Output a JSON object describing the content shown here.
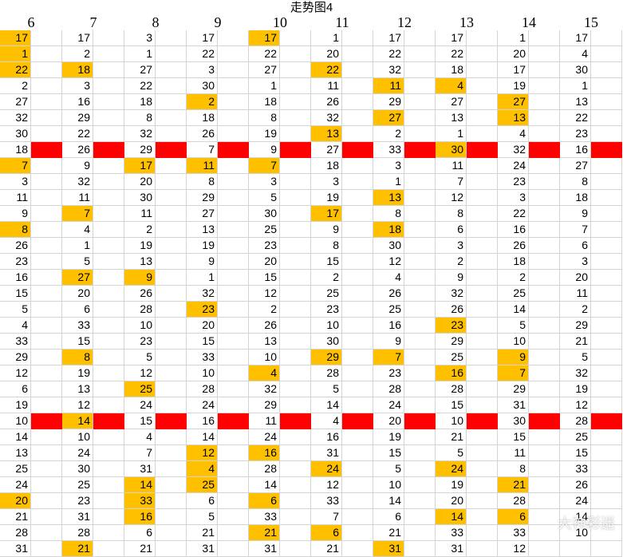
{
  "title": "走势图4",
  "headers": [
    "6",
    "7",
    "8",
    "9",
    "10",
    "11",
    "12",
    "13",
    "14",
    "15"
  ],
  "rows": [
    [
      17,
      17,
      3,
      17,
      17,
      1,
      17,
      17,
      1,
      17
    ],
    [
      1,
      2,
      1,
      22,
      22,
      20,
      22,
      22,
      20,
      4
    ],
    [
      22,
      18,
      27,
      3,
      27,
      22,
      32,
      18,
      17,
      30
    ],
    [
      2,
      3,
      22,
      30,
      1,
      11,
      11,
      4,
      19,
      1
    ],
    [
      27,
      16,
      18,
      2,
      18,
      26,
      29,
      27,
      27,
      13
    ],
    [
      32,
      29,
      8,
      18,
      8,
      32,
      27,
      13,
      13,
      22
    ],
    [
      30,
      22,
      32,
      26,
      19,
      13,
      2,
      1,
      4,
      23
    ],
    [
      18,
      26,
      29,
      7,
      9,
      27,
      33,
      30,
      32,
      16
    ],
    [
      7,
      9,
      17,
      11,
      7,
      18,
      3,
      11,
      24,
      27
    ],
    [
      3,
      32,
      20,
      8,
      3,
      3,
      1,
      7,
      23,
      8
    ],
    [
      11,
      11,
      30,
      29,
      5,
      19,
      13,
      12,
      3,
      18
    ],
    [
      9,
      7,
      11,
      27,
      30,
      17,
      8,
      8,
      22,
      9
    ],
    [
      8,
      4,
      2,
      13,
      25,
      9,
      18,
      6,
      16,
      7
    ],
    [
      26,
      1,
      19,
      19,
      23,
      8,
      30,
      3,
      26,
      6
    ],
    [
      23,
      5,
      13,
      9,
      20,
      15,
      12,
      2,
      18,
      3
    ],
    [
      16,
      27,
      9,
      1,
      15,
      2,
      4,
      9,
      2,
      20
    ],
    [
      15,
      20,
      26,
      32,
      12,
      25,
      26,
      32,
      25,
      11
    ],
    [
      5,
      6,
      28,
      23,
      2,
      23,
      25,
      26,
      14,
      2
    ],
    [
      4,
      33,
      10,
      20,
      26,
      10,
      16,
      23,
      5,
      29
    ],
    [
      33,
      15,
      23,
      15,
      13,
      30,
      9,
      29,
      10,
      21
    ],
    [
      29,
      8,
      5,
      33,
      10,
      29,
      7,
      25,
      9,
      5
    ],
    [
      12,
      19,
      12,
      10,
      4,
      28,
      23,
      16,
      7,
      32
    ],
    [
      6,
      13,
      25,
      28,
      32,
      5,
      28,
      28,
      29,
      19
    ],
    [
      19,
      12,
      24,
      24,
      29,
      14,
      24,
      15,
      31,
      12
    ],
    [
      10,
      14,
      15,
      16,
      11,
      4,
      20,
      10,
      30,
      28
    ],
    [
      14,
      10,
      4,
      14,
      24,
      16,
      19,
      21,
      15,
      25
    ],
    [
      13,
      24,
      7,
      12,
      16,
      31,
      15,
      5,
      11,
      15
    ],
    [
      25,
      30,
      31,
      4,
      28,
      24,
      5,
      24,
      8,
      33
    ],
    [
      24,
      25,
      14,
      25,
      14,
      12,
      10,
      19,
      21,
      26
    ],
    [
      20,
      23,
      33,
      6,
      6,
      33,
      14,
      20,
      28,
      24
    ],
    [
      21,
      31,
      16,
      5,
      33,
      7,
      6,
      14,
      6,
      14
    ],
    [
      28,
      28,
      6,
      21,
      21,
      6,
      21,
      33,
      33,
      10
    ],
    [
      31,
      21,
      21,
      31,
      31,
      21,
      31,
      31,
      12,
      ""
    ]
  ],
  "highlights": [
    [
      0,
      0
    ],
    [
      0,
      4
    ],
    [
      1,
      0
    ],
    [
      2,
      0
    ],
    [
      2,
      1
    ],
    [
      2,
      5
    ],
    [
      3,
      6
    ],
    [
      3,
      7
    ],
    [
      4,
      3
    ],
    [
      4,
      8
    ],
    [
      5,
      6
    ],
    [
      5,
      8
    ],
    [
      6,
      5
    ],
    [
      7,
      7
    ],
    [
      8,
      0
    ],
    [
      8,
      2
    ],
    [
      8,
      3
    ],
    [
      8,
      4
    ],
    [
      10,
      6
    ],
    [
      11,
      1
    ],
    [
      11,
      5
    ],
    [
      12,
      0
    ],
    [
      12,
      6
    ],
    [
      15,
      1
    ],
    [
      15,
      2
    ],
    [
      17,
      3
    ],
    [
      18,
      7
    ],
    [
      20,
      1
    ],
    [
      20,
      5
    ],
    [
      20,
      6
    ],
    [
      20,
      8
    ],
    [
      21,
      4
    ],
    [
      21,
      7
    ],
    [
      21,
      8
    ],
    [
      22,
      2
    ],
    [
      24,
      1
    ],
    [
      26,
      3
    ],
    [
      26,
      4
    ],
    [
      27,
      3
    ],
    [
      27,
      5
    ],
    [
      27,
      7
    ],
    [
      28,
      2
    ],
    [
      28,
      3
    ],
    [
      28,
      8
    ],
    [
      29,
      0
    ],
    [
      29,
      2
    ],
    [
      29,
      4
    ],
    [
      30,
      2
    ],
    [
      30,
      7
    ],
    [
      30,
      8
    ],
    [
      31,
      4
    ],
    [
      31,
      5
    ],
    [
      32,
      1
    ],
    [
      32,
      6
    ]
  ],
  "separator_rows": [
    7,
    24
  ],
  "colors": {
    "highlight": "#ffc000",
    "separator": "#ff0000",
    "grid": "#d4d4d4"
  },
  "watermark": "大神彩迷"
}
